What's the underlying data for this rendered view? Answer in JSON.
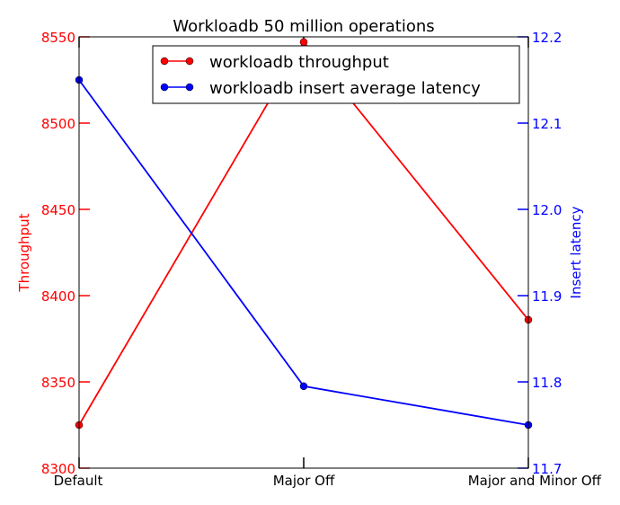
{
  "chart_data": {
    "type": "line",
    "title": "Workloadb 50 million operations",
    "categories": [
      "Default",
      "Major Off",
      "Major and Minor Off"
    ],
    "left_axis": {
      "label": "Throughput",
      "color": "#ff0000",
      "ylim": [
        8300,
        8550
      ],
      "ticks": [
        "8300",
        "8350",
        "8400",
        "8450",
        "8500",
        "8550"
      ]
    },
    "right_axis": {
      "label": "Insert latency",
      "color": "#0000ff",
      "ylim": [
        11.7,
        12.2
      ],
      "ticks": [
        "11.7",
        "11.8",
        "11.9",
        "12.0",
        "12.1",
        "12.2"
      ]
    },
    "series": [
      {
        "name": "workloadb throughput",
        "axis": "left",
        "color": "#ff0000",
        "values": [
          8325,
          8547,
          8386
        ]
      },
      {
        "name": "workloadb insert average latency",
        "axis": "right",
        "color": "#0000ff",
        "values": [
          12.15,
          11.795,
          11.75
        ]
      }
    ],
    "grid": false,
    "legend": "top-center"
  }
}
